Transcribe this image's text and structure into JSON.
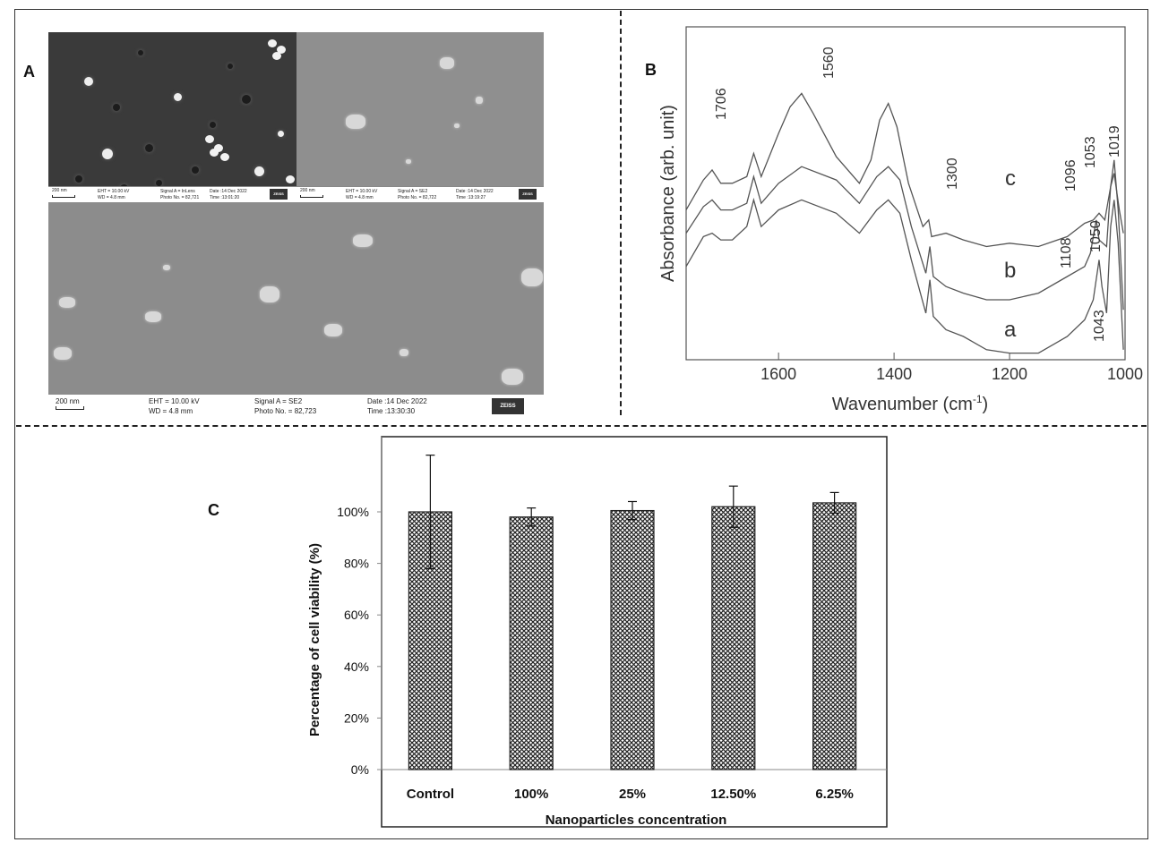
{
  "panels": {
    "a": "A",
    "b": "B",
    "c": "C"
  },
  "sem_images": [
    {
      "scale": "200 nm",
      "eht": "EHT = 10.00 kV",
      "wd": "WD = 4.8 mm",
      "signal": "Signal A = InLens",
      "photo": "Photo No. = 82,721",
      "date": "Date :14 Dec 2022",
      "time": "Time :13:01:20",
      "logo": "ZEISS"
    },
    {
      "scale": "200 nm",
      "eht": "EHT = 10.00 kV",
      "wd": "WD = 4.8 mm",
      "signal": "Signal A = SE2",
      "photo": "Photo No. = 82,722",
      "date": "Date :14 Dec 2022",
      "time": "Time :13:19:27",
      "logo": "ZEISS"
    },
    {
      "scale": "200 nm",
      "eht": "EHT = 10.00 kV",
      "wd": "WD = 4.8 mm",
      "signal": "Signal A = SE2",
      "photo": "Photo No. = 82,723",
      "date": "Date :14 Dec 2022",
      "time": "Time :13:30:30",
      "logo": "ZEISS"
    }
  ],
  "chart_data": [
    {
      "type": "line",
      "xlabel": "Wavenumber (cm",
      "xlabel_sup": "-1",
      "xlabel_close": ")",
      "ylabel": "Absorbance (arb. unit)",
      "xlim": [
        1760,
        1000
      ],
      "x_ticks": [
        "1600",
        "1400",
        "1200",
        "1000"
      ],
      "series": [
        {
          "name": "a",
          "points": [
            [
              1760,
              0.72
            ],
            [
              1730,
              0.63
            ],
            [
              1715,
              0.62
            ],
            [
              1700,
              0.64
            ],
            [
              1680,
              0.64
            ],
            [
              1655,
              0.6
            ],
            [
              1643,
              0.52
            ],
            [
              1630,
              0.6
            ],
            [
              1600,
              0.55
            ],
            [
              1560,
              0.52
            ],
            [
              1500,
              0.56
            ],
            [
              1460,
              0.62
            ],
            [
              1430,
              0.55
            ],
            [
              1410,
              0.52
            ],
            [
              1390,
              0.56
            ],
            [
              1370,
              0.7
            ],
            [
              1345,
              0.86
            ],
            [
              1338,
              0.76
            ],
            [
              1332,
              0.87
            ],
            [
              1310,
              0.91
            ],
            [
              1280,
              0.93
            ],
            [
              1240,
              0.97
            ],
            [
              1200,
              0.98
            ],
            [
              1150,
              0.98
            ],
            [
              1100,
              0.93
            ],
            [
              1070,
              0.88
            ],
            [
              1055,
              0.82
            ],
            [
              1045,
              0.7
            ],
            [
              1040,
              0.78
            ],
            [
              1032,
              0.86
            ],
            [
              1025,
              0.6
            ],
            [
              1019,
              0.52
            ],
            [
              1012,
              0.65
            ],
            [
              1003,
              0.97
            ]
          ]
        },
        {
          "name": "b",
          "points": [
            [
              1760,
              0.62
            ],
            [
              1730,
              0.54
            ],
            [
              1715,
              0.52
            ],
            [
              1700,
              0.55
            ],
            [
              1680,
              0.55
            ],
            [
              1655,
              0.53
            ],
            [
              1643,
              0.45
            ],
            [
              1630,
              0.53
            ],
            [
              1600,
              0.47
            ],
            [
              1560,
              0.42
            ],
            [
              1500,
              0.46
            ],
            [
              1460,
              0.53
            ],
            [
              1430,
              0.45
            ],
            [
              1410,
              0.42
            ],
            [
              1390,
              0.46
            ],
            [
              1370,
              0.6
            ],
            [
              1345,
              0.74
            ],
            [
              1338,
              0.66
            ],
            [
              1332,
              0.75
            ],
            [
              1310,
              0.78
            ],
            [
              1280,
              0.8
            ],
            [
              1240,
              0.82
            ],
            [
              1200,
              0.82
            ],
            [
              1150,
              0.8
            ],
            [
              1100,
              0.75
            ],
            [
              1070,
              0.72
            ],
            [
              1060,
              0.68
            ],
            [
              1050,
              0.58
            ],
            [
              1045,
              0.64
            ],
            [
              1032,
              0.66
            ],
            [
              1025,
              0.48
            ],
            [
              1019,
              0.4
            ],
            [
              1012,
              0.55
            ],
            [
              1003,
              0.85
            ]
          ]
        },
        {
          "name": "c",
          "points": [
            [
              1760,
              0.55
            ],
            [
              1730,
              0.46
            ],
            [
              1715,
              0.43
            ],
            [
              1700,
              0.47
            ],
            [
              1680,
              0.47
            ],
            [
              1655,
              0.45
            ],
            [
              1643,
              0.38
            ],
            [
              1630,
              0.45
            ],
            [
              1600,
              0.32
            ],
            [
              1580,
              0.24
            ],
            [
              1560,
              0.2
            ],
            [
              1540,
              0.26
            ],
            [
              1500,
              0.39
            ],
            [
              1460,
              0.47
            ],
            [
              1440,
              0.4
            ],
            [
              1425,
              0.28
            ],
            [
              1410,
              0.23
            ],
            [
              1395,
              0.3
            ],
            [
              1375,
              0.47
            ],
            [
              1350,
              0.6
            ],
            [
              1340,
              0.58
            ],
            [
              1335,
              0.63
            ],
            [
              1310,
              0.62
            ],
            [
              1280,
              0.64
            ],
            [
              1240,
              0.66
            ],
            [
              1200,
              0.65
            ],
            [
              1150,
              0.66
            ],
            [
              1100,
              0.63
            ],
            [
              1070,
              0.59
            ],
            [
              1055,
              0.58
            ],
            [
              1045,
              0.56
            ],
            [
              1035,
              0.58
            ],
            [
              1025,
              0.48
            ],
            [
              1019,
              0.44
            ],
            [
              1010,
              0.55
            ],
            [
              1003,
              0.62
            ]
          ]
        }
      ],
      "annotations": [
        "1706",
        "1560",
        "1300",
        "1096",
        "1053",
        "1019",
        "1108",
        "1050",
        "1043"
      ]
    },
    {
      "type": "bar",
      "categories": [
        "Control",
        "100%",
        "25%",
        "12.50%",
        "6.25%"
      ],
      "values": [
        100,
        98,
        100.5,
        102,
        103.5
      ],
      "errors": [
        22,
        3.5,
        3.5,
        8,
        4
      ],
      "ylim": [
        0,
        125
      ],
      "y_ticks": [
        "0%",
        "20%",
        "40%",
        "60%",
        "80%",
        "100%"
      ],
      "xlabel": "Nanoparticles concentration",
      "ylabel": "Percentage of cell viability (%)"
    }
  ]
}
